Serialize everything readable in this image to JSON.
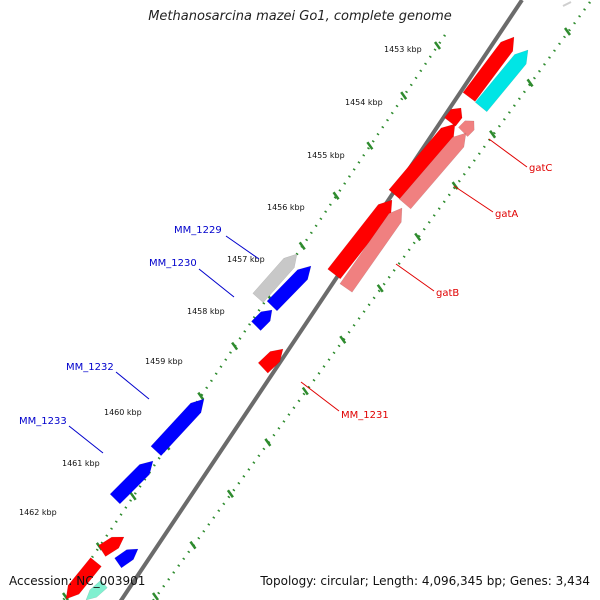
{
  "title": "Methanosarcina mazei Go1, complete genome",
  "footer": {
    "accession": "Accession: NC_003901",
    "topology": "Topology: circular; Length: 4,096,345 bp; Genes: 3,434"
  },
  "colors": {
    "backbone": "#6b6b6b",
    "tick": "#2e8b2e",
    "forward_gene": "#ff0000",
    "reverse_gene": "#0000ff",
    "rrna_like": "#00e5e5",
    "pale_red": "#f08080",
    "pseudo_gene": "#c8c8c8",
    "label_red": "#e00000",
    "label_blue": "#0000cc"
  },
  "scale_labels": [
    "1453 kbp",
    "1454 kbp",
    "1455 kbp",
    "1456 kbp",
    "1457 kbp",
    "1458 kbp",
    "1459 kbp",
    "1460 kbp",
    "1461 kbp",
    "1462 kbp"
  ],
  "gene_labels": [
    {
      "text": "gatC",
      "color": "#e00000"
    },
    {
      "text": "gatA",
      "color": "#e00000"
    },
    {
      "text": "gatB",
      "color": "#e00000"
    },
    {
      "text": "MM_1231",
      "color": "#e00000"
    },
    {
      "text": "MM_1229",
      "color": "#0000cc"
    },
    {
      "text": "MM_1230",
      "color": "#0000cc"
    },
    {
      "text": "MM_1232",
      "color": "#0000cc"
    },
    {
      "text": "MM_1233",
      "color": "#0000cc"
    }
  ]
}
